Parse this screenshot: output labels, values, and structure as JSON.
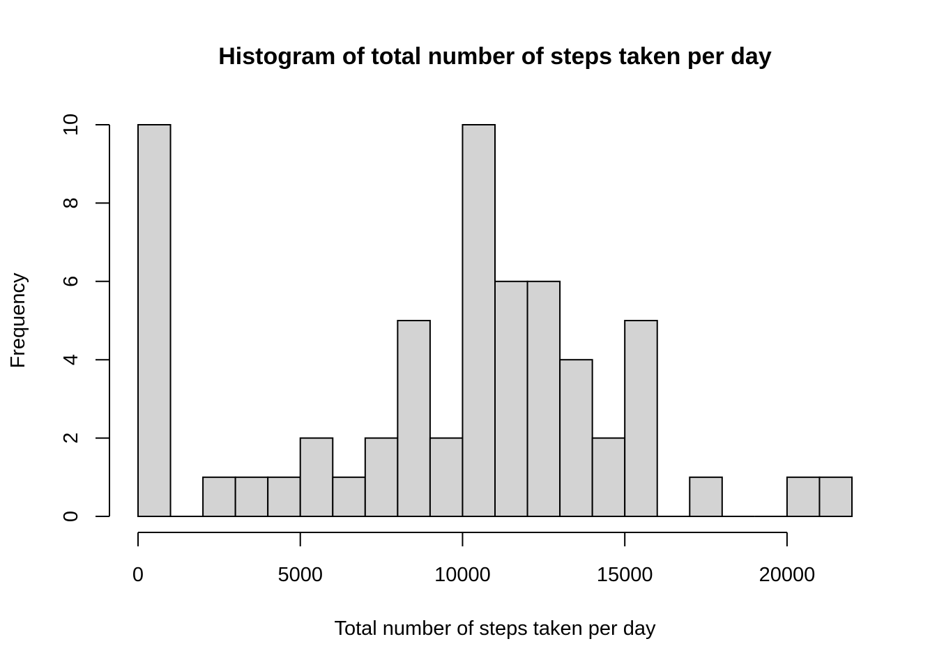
{
  "chart_data": {
    "type": "bar",
    "title": "Histogram of total number of steps taken per day",
    "xlabel": "Total number of steps taken per day",
    "ylabel": "Frequency",
    "bins": [
      {
        "start": 0,
        "end": 1000,
        "count": 10
      },
      {
        "start": 1000,
        "end": 2000,
        "count": 0
      },
      {
        "start": 2000,
        "end": 3000,
        "count": 1
      },
      {
        "start": 3000,
        "end": 4000,
        "count": 1
      },
      {
        "start": 4000,
        "end": 5000,
        "count": 1
      },
      {
        "start": 5000,
        "end": 6000,
        "count": 2
      },
      {
        "start": 6000,
        "end": 7000,
        "count": 1
      },
      {
        "start": 7000,
        "end": 8000,
        "count": 2
      },
      {
        "start": 8000,
        "end": 9000,
        "count": 5
      },
      {
        "start": 9000,
        "end": 10000,
        "count": 2
      },
      {
        "start": 10000,
        "end": 11000,
        "count": 10
      },
      {
        "start": 11000,
        "end": 12000,
        "count": 6
      },
      {
        "start": 12000,
        "end": 13000,
        "count": 6
      },
      {
        "start": 13000,
        "end": 14000,
        "count": 4
      },
      {
        "start": 14000,
        "end": 15000,
        "count": 2
      },
      {
        "start": 15000,
        "end": 16000,
        "count": 5
      },
      {
        "start": 16000,
        "end": 17000,
        "count": 0
      },
      {
        "start": 17000,
        "end": 18000,
        "count": 1
      },
      {
        "start": 18000,
        "end": 19000,
        "count": 0
      },
      {
        "start": 19000,
        "end": 20000,
        "count": 0
      },
      {
        "start": 20000,
        "end": 21000,
        "count": 1
      },
      {
        "start": 21000,
        "end": 22000,
        "count": 1
      }
    ],
    "x_ticks": [
      0,
      5000,
      10000,
      15000,
      20000
    ],
    "y_ticks": [
      0,
      2,
      4,
      6,
      8,
      10
    ],
    "xlim": [
      0,
      22000
    ],
    "ylim": [
      0,
      10
    ],
    "bar_fill": "#d3d3d3",
    "bar_stroke": "#000000",
    "grid": false
  }
}
